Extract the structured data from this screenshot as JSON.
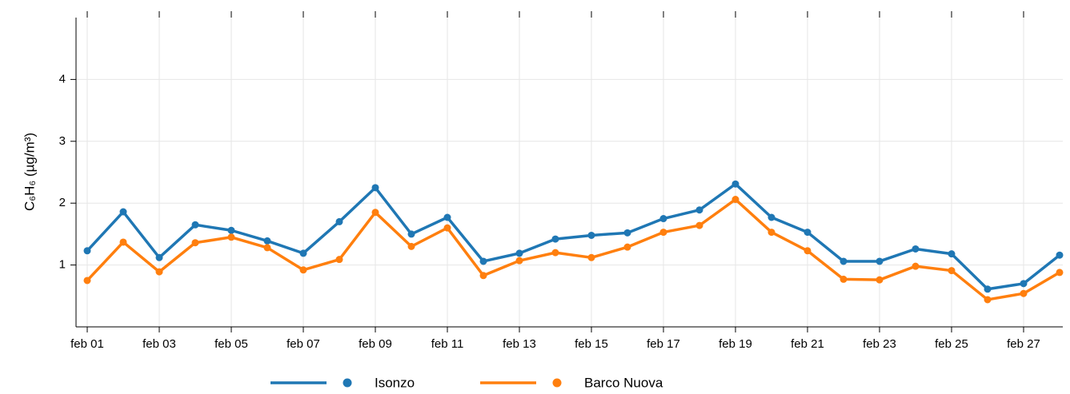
{
  "chart_data": {
    "type": "line",
    "y_label": "C₆H₆ (µg/m³)",
    "categories": [
      "feb 01",
      null,
      "feb 03",
      null,
      "feb 05",
      null,
      "feb 07",
      null,
      "feb 09",
      null,
      "feb 11",
      null,
      "feb 13",
      null,
      "feb 15",
      null,
      "feb 17",
      null,
      "feb 19",
      null,
      "feb 21",
      null,
      "feb 23",
      null,
      "feb 25",
      null,
      "feb 27",
      null
    ],
    "series": [
      {
        "name": "Isonzo",
        "color": "#1f77b4",
        "values": [
          1.23,
          1.86,
          1.12,
          1.65,
          1.56,
          1.39,
          1.19,
          1.7,
          2.25,
          1.5,
          1.77,
          1.06,
          1.19,
          1.42,
          1.48,
          1.52,
          1.75,
          1.89,
          2.31,
          1.77,
          1.53,
          1.06,
          1.06,
          1.26,
          1.18,
          0.61,
          0.7,
          1.16
        ]
      },
      {
        "name": "Barco Nuova",
        "color": "#ff7f0e",
        "values": [
          0.75,
          1.37,
          0.89,
          1.36,
          1.45,
          1.28,
          0.92,
          1.09,
          1.85,
          1.3,
          1.6,
          0.83,
          1.07,
          1.2,
          1.12,
          1.29,
          1.53,
          1.64,
          2.06,
          1.53,
          1.23,
          0.77,
          0.76,
          0.98,
          0.91,
          0.44,
          0.54,
          0.88
        ]
      }
    ],
    "ylim": [
      0,
      5
    ],
    "yticks": [
      1,
      2,
      3,
      4
    ],
    "grid": true
  }
}
